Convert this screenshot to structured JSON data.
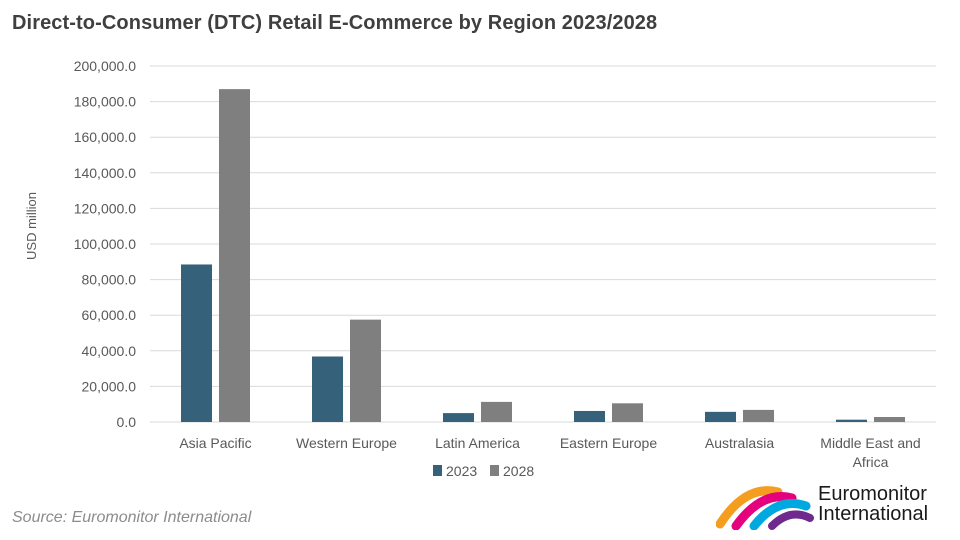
{
  "title": "Direct-to-Consumer (DTC) Retail E-Commerce by Region 2023/2028",
  "source": "Source: Euromonitor International",
  "logo": {
    "line1": "Euromonitor",
    "line2": "International"
  },
  "colors": {
    "series_2023": "#35617b",
    "series_2028": "#7f7f7f",
    "grid": "#d9d9d9",
    "axis_text": "#595959"
  },
  "chart_data": {
    "type": "bar",
    "title": "Direct-to-Consumer (DTC) Retail E-Commerce by Region 2023/2028",
    "xlabel": "",
    "ylabel": "USD million",
    "ylim": [
      0,
      200000
    ],
    "yticks": [
      "0.0",
      "20,000.0",
      "40,000.0",
      "60,000.0",
      "80,000.0",
      "100,000.0",
      "120,000.0",
      "140,000.0",
      "160,000.0",
      "180,000.0",
      "200,000.0"
    ],
    "categories": [
      [
        "Asia Pacific"
      ],
      [
        "Western Europe"
      ],
      [
        "Latin America"
      ],
      [
        "Eastern Europe"
      ],
      [
        "Australasia"
      ],
      [
        "Middle East and",
        "Africa"
      ]
    ],
    "series": [
      {
        "name": "2023",
        "values": [
          88500,
          36800,
          5000,
          6200,
          5700,
          1300
        ]
      },
      {
        "name": "2028",
        "values": [
          187000,
          57500,
          11300,
          10500,
          6800,
          2800
        ]
      }
    ],
    "grid": true,
    "legend": "bottom-center"
  }
}
